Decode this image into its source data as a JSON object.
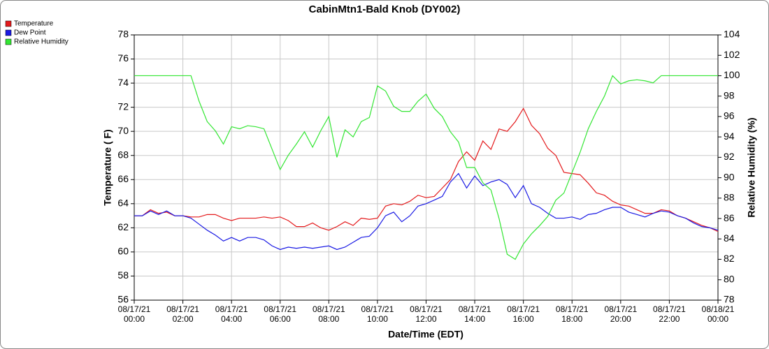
{
  "chart_data": {
    "type": "line",
    "title": "CabinMtn1-Bald Knob (DY002)",
    "x_label": "Date/Time (EDT)",
    "y_label": "Temperature ( F)",
    "y2_label": "Relative Humidity (%)",
    "grid": true,
    "legend": "top-left",
    "xlim": [
      "08/17/21 00:00",
      "08/18/21 00:00"
    ],
    "xticks": [
      "08/17/21 00:00",
      "08/17/21 02:00",
      "08/17/21 04:00",
      "08/17/21 06:00",
      "08/17/21 08:00",
      "08/17/21 10:00",
      "08/17/21 12:00",
      "08/17/21 14:00",
      "08/17/21 16:00",
      "08/17/21 18:00",
      "08/17/21 20:00",
      "08/17/21 22:00",
      "08/18/21 00:00"
    ],
    "ylim": [
      56,
      78
    ],
    "yticks": [
      56,
      58,
      60,
      62,
      64,
      66,
      68,
      70,
      72,
      74,
      76,
      78
    ],
    "y2lim": [
      78,
      104
    ],
    "y2ticks": [
      78,
      80,
      82,
      84,
      86,
      88,
      90,
      92,
      94,
      96,
      98,
      100,
      102,
      104
    ],
    "x": [
      "08/17/21 00:00",
      "08/17/21 00:20",
      "08/17/21 00:40",
      "08/17/21 01:00",
      "08/17/21 01:20",
      "08/17/21 01:40",
      "08/17/21 02:00",
      "08/17/21 02:20",
      "08/17/21 02:40",
      "08/17/21 03:00",
      "08/17/21 03:20",
      "08/17/21 03:40",
      "08/17/21 04:00",
      "08/17/21 04:20",
      "08/17/21 04:40",
      "08/17/21 05:00",
      "08/17/21 05:20",
      "08/17/21 05:40",
      "08/17/21 06:00",
      "08/17/21 06:20",
      "08/17/21 06:40",
      "08/17/21 07:00",
      "08/17/21 07:20",
      "08/17/21 07:40",
      "08/17/21 08:00",
      "08/17/21 08:20",
      "08/17/21 08:40",
      "08/17/21 09:00",
      "08/17/21 09:20",
      "08/17/21 09:40",
      "08/17/21 10:00",
      "08/17/21 10:20",
      "08/17/21 10:40",
      "08/17/21 11:00",
      "08/17/21 11:20",
      "08/17/21 11:40",
      "08/17/21 12:00",
      "08/17/21 12:20",
      "08/17/21 12:40",
      "08/17/21 13:00",
      "08/17/21 13:20",
      "08/17/21 13:40",
      "08/17/21 14:00",
      "08/17/21 14:20",
      "08/17/21 14:40",
      "08/17/21 15:00",
      "08/17/21 15:20",
      "08/17/21 15:40",
      "08/17/21 16:00",
      "08/17/21 16:20",
      "08/17/21 16:40",
      "08/17/21 17:00",
      "08/17/21 17:20",
      "08/17/21 17:40",
      "08/17/21 18:00",
      "08/17/21 18:20",
      "08/17/21 18:40",
      "08/17/21 19:00",
      "08/17/21 19:20",
      "08/17/21 19:40",
      "08/17/21 20:00",
      "08/17/21 20:20",
      "08/17/21 20:40",
      "08/17/21 21:00",
      "08/17/21 21:20",
      "08/17/21 21:40",
      "08/17/21 22:00",
      "08/17/21 22:20",
      "08/17/21 22:40",
      "08/17/21 23:00",
      "08/17/21 23:20",
      "08/17/21 23:40",
      "08/18/21 00:00"
    ],
    "series": [
      {
        "name": "Temperature",
        "color": "#e41a1c",
        "values": [
          63.0,
          63.0,
          63.5,
          63.2,
          63.3,
          63.0,
          63.0,
          62.9,
          62.9,
          63.1,
          63.1,
          62.8,
          62.6,
          62.8,
          62.8,
          62.8,
          62.9,
          62.8,
          62.9,
          62.6,
          62.1,
          62.1,
          62.4,
          62.0,
          61.8,
          62.1,
          62.5,
          62.2,
          62.8,
          62.7,
          62.8,
          63.8,
          64.0,
          63.9,
          64.2,
          64.7,
          64.5,
          64.6,
          65.3,
          66.0,
          67.5,
          68.3,
          67.6,
          69.2,
          68.5,
          70.2,
          70.0,
          70.8,
          71.9,
          70.5,
          69.8,
          68.6,
          68.0,
          66.6,
          66.5,
          66.4,
          65.7,
          64.9,
          64.7,
          64.2,
          63.9,
          63.8,
          63.5,
          63.2,
          63.2,
          63.5,
          63.4,
          63.0,
          62.8,
          62.5,
          62.2,
          62.0,
          61.7
        ]
      },
      {
        "name": "Dew Point",
        "color": "#1a1ae4",
        "values": [
          63.0,
          63.0,
          63.4,
          63.1,
          63.4,
          63.0,
          63.0,
          62.8,
          62.3,
          61.8,
          61.4,
          60.9,
          61.2,
          60.9,
          61.2,
          61.2,
          61.0,
          60.5,
          60.2,
          60.4,
          60.3,
          60.4,
          60.3,
          60.4,
          60.5,
          60.2,
          60.4,
          60.8,
          61.2,
          61.3,
          62.0,
          63.0,
          63.3,
          62.5,
          63.0,
          63.8,
          64.0,
          64.3,
          64.6,
          65.8,
          66.5,
          65.3,
          66.3,
          65.5,
          65.8,
          66.0,
          65.6,
          64.5,
          65.5,
          64.0,
          63.7,
          63.2,
          62.8,
          62.8,
          62.9,
          62.7,
          63.1,
          63.2,
          63.5,
          63.7,
          63.7,
          63.3,
          63.1,
          62.9,
          63.2,
          63.4,
          63.3,
          63.0,
          62.8,
          62.4,
          62.1,
          62.0,
          61.8
        ]
      },
      {
        "name": "Relative Humidity",
        "color": "#33e633",
        "axis": "y2",
        "values": [
          100,
          100,
          100,
          100,
          100,
          100,
          100,
          100,
          97.5,
          95.5,
          94.6,
          93.3,
          95.0,
          94.8,
          95.1,
          95.0,
          94.8,
          92.8,
          90.8,
          92.2,
          93.3,
          94.5,
          93.0,
          94.6,
          96.0,
          92.0,
          94.7,
          94.0,
          95.5,
          95.9,
          99.0,
          98.5,
          97.0,
          96.5,
          96.5,
          97.5,
          98.2,
          96.8,
          96.0,
          94.5,
          93.5,
          91.0,
          91.0,
          89.5,
          88.8,
          86.0,
          82.5,
          82.0,
          83.5,
          84.5,
          85.3,
          86.2,
          87.8,
          88.5,
          90.5,
          92.5,
          94.8,
          96.5,
          98.0,
          100,
          99.2,
          99.5,
          99.6,
          99.5,
          99.3,
          100,
          100,
          100,
          100,
          100,
          100,
          100,
          100
        ]
      }
    ]
  }
}
